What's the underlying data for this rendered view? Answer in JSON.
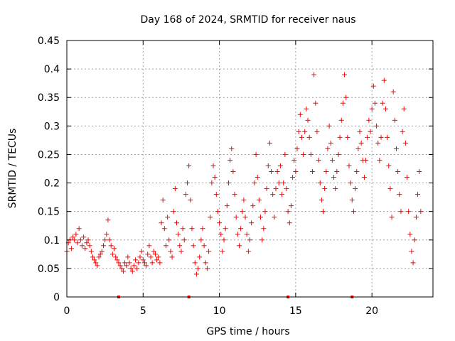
{
  "chart_data": {
    "type": "scatter",
    "title": "Day 168 of 2024, SRMTID for receiver naus",
    "xlabel": "GPS time / hours",
    "ylabel": "SRMTID / TECUs",
    "xlim": [
      0,
      24
    ],
    "ylim": [
      0,
      0.45
    ],
    "x_ticks": [
      0,
      5,
      10,
      15,
      20
    ],
    "x_tick_labels": [
      "0",
      "5",
      "10",
      "15",
      "20"
    ],
    "y_ticks": [
      0,
      0.05,
      0.1,
      0.15,
      0.2,
      0.25,
      0.3,
      0.35,
      0.4,
      0.45
    ],
    "y_tick_labels": [
      "0",
      "0.05",
      "0.1",
      "0.15",
      "0.2",
      "0.25",
      "0.3",
      "0.35",
      "0.4",
      "0.45"
    ],
    "grid": true,
    "marker": "+",
    "color": "#ff0000",
    "data_gap_markers_x": [
      3.4,
      8.0,
      14.5,
      18.7
    ],
    "series": [
      {
        "name": "SRMTID",
        "points": [
          [
            0.0,
            0.08
          ],
          [
            0.1,
            0.095
          ],
          [
            0.2,
            0.1
          ],
          [
            0.3,
            0.085
          ],
          [
            0.4,
            0.105
          ],
          [
            0.5,
            0.1
          ],
          [
            0.6,
            0.11
          ],
          [
            0.7,
            0.095
          ],
          [
            0.8,
            0.12
          ],
          [
            0.9,
            0.1
          ],
          [
            1.0,
            0.09
          ],
          [
            1.1,
            0.105
          ],
          [
            1.2,
            0.085
          ],
          [
            1.3,
            0.095
          ],
          [
            1.4,
            0.1
          ],
          [
            1.5,
            0.09
          ],
          [
            1.6,
            0.08
          ],
          [
            1.7,
            0.07
          ],
          [
            1.8,
            0.065
          ],
          [
            1.9,
            0.06
          ],
          [
            2.0,
            0.055
          ],
          [
            2.1,
            0.07
          ],
          [
            2.2,
            0.075
          ],
          [
            2.3,
            0.08
          ],
          [
            2.4,
            0.09
          ],
          [
            2.5,
            0.1
          ],
          [
            2.6,
            0.11
          ],
          [
            2.7,
            0.135
          ],
          [
            2.8,
            0.1
          ],
          [
            2.9,
            0.09
          ],
          [
            3.0,
            0.075
          ],
          [
            3.1,
            0.085
          ],
          [
            3.2,
            0.07
          ],
          [
            3.3,
            0.065
          ],
          [
            3.4,
            0.06
          ],
          [
            3.5,
            0.055
          ],
          [
            3.6,
            0.05
          ],
          [
            3.7,
            0.045
          ],
          [
            3.8,
            0.06
          ],
          [
            3.9,
            0.055
          ],
          [
            4.0,
            0.07
          ],
          [
            4.1,
            0.06
          ],
          [
            4.2,
            0.05
          ],
          [
            4.3,
            0.045
          ],
          [
            4.4,
            0.055
          ],
          [
            4.5,
            0.065
          ],
          [
            4.6,
            0.05
          ],
          [
            4.7,
            0.06
          ],
          [
            4.8,
            0.07
          ],
          [
            4.9,
            0.08
          ],
          [
            5.0,
            0.065
          ],
          [
            5.1,
            0.06
          ],
          [
            5.2,
            0.055
          ],
          [
            5.3,
            0.075
          ],
          [
            5.4,
            0.09
          ],
          [
            5.5,
            0.07
          ],
          [
            5.6,
            0.06
          ],
          [
            5.7,
            0.08
          ],
          [
            5.8,
            0.075
          ],
          [
            5.9,
            0.065
          ],
          [
            6.0,
            0.07
          ],
          [
            6.1,
            0.06
          ],
          [
            6.2,
            0.13
          ],
          [
            6.3,
            0.17
          ],
          [
            6.4,
            0.12
          ],
          [
            6.5,
            0.09
          ],
          [
            6.6,
            0.14
          ],
          [
            6.7,
            0.1
          ],
          [
            6.8,
            0.08
          ],
          [
            6.9,
            0.07
          ],
          [
            7.0,
            0.15
          ],
          [
            7.1,
            0.19
          ],
          [
            7.2,
            0.13
          ],
          [
            7.3,
            0.11
          ],
          [
            7.4,
            0.09
          ],
          [
            7.5,
            0.08
          ],
          [
            7.6,
            0.12
          ],
          [
            7.7,
            0.1
          ],
          [
            7.8,
            0.18
          ],
          [
            7.9,
            0.2
          ],
          [
            8.0,
            0.23
          ],
          [
            8.1,
            0.17
          ],
          [
            8.2,
            0.12
          ],
          [
            8.3,
            0.09
          ],
          [
            8.4,
            0.06
          ],
          [
            8.5,
            0.04
          ],
          [
            8.6,
            0.05
          ],
          [
            8.7,
            0.07
          ],
          [
            8.8,
            0.1
          ],
          [
            8.9,
            0.12
          ],
          [
            9.0,
            0.09
          ],
          [
            9.1,
            0.06
          ],
          [
            9.2,
            0.05
          ],
          [
            9.3,
            0.08
          ],
          [
            9.4,
            0.14
          ],
          [
            9.5,
            0.2
          ],
          [
            9.6,
            0.23
          ],
          [
            9.7,
            0.21
          ],
          [
            9.8,
            0.18
          ],
          [
            9.9,
            0.15
          ],
          [
            10.0,
            0.13
          ],
          [
            10.1,
            0.11
          ],
          [
            10.2,
            0.08
          ],
          [
            10.3,
            0.1
          ],
          [
            10.4,
            0.12
          ],
          [
            10.5,
            0.16
          ],
          [
            10.6,
            0.2
          ],
          [
            10.7,
            0.24
          ],
          [
            10.8,
            0.26
          ],
          [
            10.9,
            0.22
          ],
          [
            11.0,
            0.18
          ],
          [
            11.1,
            0.14
          ],
          [
            11.2,
            0.11
          ],
          [
            11.3,
            0.09
          ],
          [
            11.4,
            0.12
          ],
          [
            11.5,
            0.15
          ],
          [
            11.6,
            0.17
          ],
          [
            11.7,
            0.14
          ],
          [
            11.8,
            0.11
          ],
          [
            11.9,
            0.08
          ],
          [
            12.0,
            0.1
          ],
          [
            12.1,
            0.13
          ],
          [
            12.2,
            0.16
          ],
          [
            12.3,
            0.2
          ],
          [
            12.4,
            0.25
          ],
          [
            12.5,
            0.21
          ],
          [
            12.6,
            0.17
          ],
          [
            12.7,
            0.14
          ],
          [
            12.8,
            0.1
          ],
          [
            12.9,
            0.12
          ],
          [
            13.0,
            0.15
          ],
          [
            13.1,
            0.19
          ],
          [
            13.2,
            0.23
          ],
          [
            13.3,
            0.27
          ],
          [
            13.4,
            0.22
          ],
          [
            13.5,
            0.18
          ],
          [
            13.6,
            0.14
          ],
          [
            13.7,
            0.19
          ],
          [
            13.8,
            0.22
          ],
          [
            13.9,
            0.2
          ],
          [
            14.0,
            0.23
          ],
          [
            14.1,
            0.18
          ],
          [
            14.2,
            0.2
          ],
          [
            14.3,
            0.25
          ],
          [
            14.4,
            0.19
          ],
          [
            14.5,
            0.15
          ],
          [
            14.6,
            0.13
          ],
          [
            14.7,
            0.16
          ],
          [
            14.8,
            0.21
          ],
          [
            14.9,
            0.24
          ],
          [
            15.0,
            0.22
          ],
          [
            15.1,
            0.26
          ],
          [
            15.2,
            0.29
          ],
          [
            15.3,
            0.32
          ],
          [
            15.4,
            0.28
          ],
          [
            15.5,
            0.25
          ],
          [
            15.6,
            0.29
          ],
          [
            15.7,
            0.33
          ],
          [
            15.8,
            0.31
          ],
          [
            15.9,
            0.28
          ],
          [
            16.0,
            0.25
          ],
          [
            16.1,
            0.22
          ],
          [
            16.2,
            0.39
          ],
          [
            16.3,
            0.34
          ],
          [
            16.4,
            0.29
          ],
          [
            16.5,
            0.24
          ],
          [
            16.6,
            0.2
          ],
          [
            16.7,
            0.17
          ],
          [
            16.8,
            0.15
          ],
          [
            16.9,
            0.19
          ],
          [
            17.0,
            0.22
          ],
          [
            17.1,
            0.26
          ],
          [
            17.2,
            0.3
          ],
          [
            17.3,
            0.27
          ],
          [
            17.4,
            0.24
          ],
          [
            17.5,
            0.21
          ],
          [
            17.6,
            0.19
          ],
          [
            17.7,
            0.22
          ],
          [
            17.8,
            0.25
          ],
          [
            17.9,
            0.28
          ],
          [
            18.0,
            0.31
          ],
          [
            18.1,
            0.34
          ],
          [
            18.2,
            0.39
          ],
          [
            18.3,
            0.35
          ],
          [
            18.4,
            0.28
          ],
          [
            18.5,
            0.23
          ],
          [
            18.6,
            0.2
          ],
          [
            18.7,
            0.17
          ],
          [
            18.8,
            0.15
          ],
          [
            18.9,
            0.19
          ],
          [
            19.0,
            0.22
          ],
          [
            19.1,
            0.26
          ],
          [
            19.2,
            0.29
          ],
          [
            19.3,
            0.27
          ],
          [
            19.4,
            0.24
          ],
          [
            19.5,
            0.21
          ],
          [
            19.6,
            0.24
          ],
          [
            19.7,
            0.28
          ],
          [
            19.8,
            0.31
          ],
          [
            19.9,
            0.29
          ],
          [
            20.0,
            0.33
          ],
          [
            20.1,
            0.37
          ],
          [
            20.2,
            0.34
          ],
          [
            20.3,
            0.3
          ],
          [
            20.4,
            0.27
          ],
          [
            20.5,
            0.24
          ],
          [
            20.6,
            0.28
          ],
          [
            20.7,
            0.34
          ],
          [
            20.8,
            0.38
          ],
          [
            20.9,
            0.33
          ],
          [
            21.0,
            0.28
          ],
          [
            21.1,
            0.23
          ],
          [
            21.2,
            0.19
          ],
          [
            21.3,
            0.14
          ],
          [
            21.4,
            0.36
          ],
          [
            21.5,
            0.31
          ],
          [
            21.6,
            0.26
          ],
          [
            21.7,
            0.22
          ],
          [
            21.8,
            0.18
          ],
          [
            21.9,
            0.15
          ],
          [
            22.0,
            0.29
          ],
          [
            22.1,
            0.33
          ],
          [
            22.2,
            0.27
          ],
          [
            22.3,
            0.21
          ],
          [
            22.4,
            0.15
          ],
          [
            22.5,
            0.11
          ],
          [
            22.6,
            0.08
          ],
          [
            22.7,
            0.06
          ],
          [
            22.8,
            0.1
          ],
          [
            22.9,
            0.14
          ],
          [
            23.0,
            0.18
          ],
          [
            23.1,
            0.22
          ],
          [
            23.2,
            0.15
          ]
        ]
      }
    ]
  }
}
